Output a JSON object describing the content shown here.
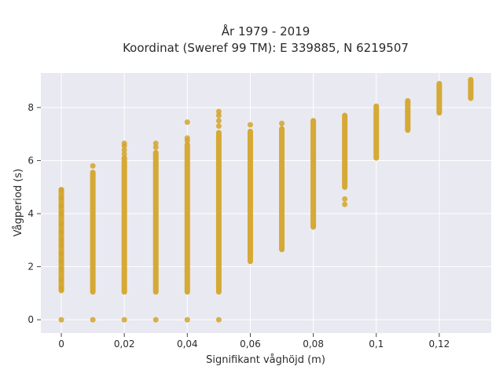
{
  "chart_data": {
    "type": "scatter",
    "title_lines": [
      "År 1979 - 2019",
      "Koordinat (Sweref 99 TM): E 339885, N 6219507"
    ],
    "xlabel": "Signifikant våghöjd (m)",
    "ylabel": "Vågperiod (s)",
    "xlim": [
      -0.0065,
      0.1365
    ],
    "ylim": [
      -0.5,
      9.3
    ],
    "x_ticks": [
      0,
      0.02,
      0.04,
      0.06,
      0.08,
      0.1,
      0.12
    ],
    "x_tick_labels": [
      "0",
      "0,02",
      "0,04",
      "0,06",
      "0,08",
      "0,1",
      "0,12"
    ],
    "y_ticks": [
      0,
      2,
      4,
      6,
      8
    ],
    "y_tick_labels": [
      "0",
      "2",
      "4",
      "6",
      "8"
    ],
    "grid": true,
    "colors": {
      "marker": "#D4A52A",
      "plot_background": "#E9E9F1",
      "grid": "#FFFFFF"
    },
    "series": [
      {
        "columns": [
          {
            "x": 0.0,
            "y_range": [
              1.1,
              4.9
            ],
            "points": [
              0,
              1.2,
              1.5,
              1.9,
              2.2,
              2.5,
              2.8,
              3.0,
              3.3,
              3.6,
              4.0,
              4.3,
              4.6,
              4.9
            ]
          },
          {
            "x": 0.01,
            "y_range": [
              1.05,
              5.55
            ],
            "points": [
              0,
              5.8
            ]
          },
          {
            "x": 0.02,
            "y_range": [
              1.05,
              6.1
            ],
            "points": [
              0,
              6.25,
              6.4,
              6.55,
              6.65
            ]
          },
          {
            "x": 0.03,
            "y_range": [
              1.05,
              6.3
            ],
            "points": [
              0,
              6.5,
              6.65
            ]
          },
          {
            "x": 0.04,
            "y_range": [
              1.05,
              6.6
            ],
            "points": [
              0,
              6.75,
              6.85,
              7.45
            ]
          },
          {
            "x": 0.05,
            "y_range": [
              1.05,
              7.05
            ],
            "points": [
              0,
              7.3,
              7.5,
              7.7,
              7.85
            ]
          },
          {
            "x": 0.06,
            "y_range": [
              2.2,
              7.1
            ],
            "points": [
              7.35
            ]
          },
          {
            "x": 0.07,
            "y_range": [
              2.65,
              7.2
            ],
            "points": [
              7.4
            ]
          },
          {
            "x": 0.08,
            "y_range": [
              3.5,
              7.5
            ],
            "points": []
          },
          {
            "x": 0.09,
            "y_range": [
              5.0,
              7.7
            ],
            "points": [
              4.35,
              4.55
            ]
          },
          {
            "x": 0.1,
            "y_range": [
              6.1,
              8.05
            ],
            "points": []
          },
          {
            "x": 0.11,
            "y_range": [
              7.15,
              8.25
            ],
            "points": []
          },
          {
            "x": 0.12,
            "y_range": [
              7.8,
              8.9
            ],
            "points": []
          },
          {
            "x": 0.13,
            "y_range": [
              8.35,
              9.05
            ],
            "points": []
          }
        ]
      }
    ]
  }
}
